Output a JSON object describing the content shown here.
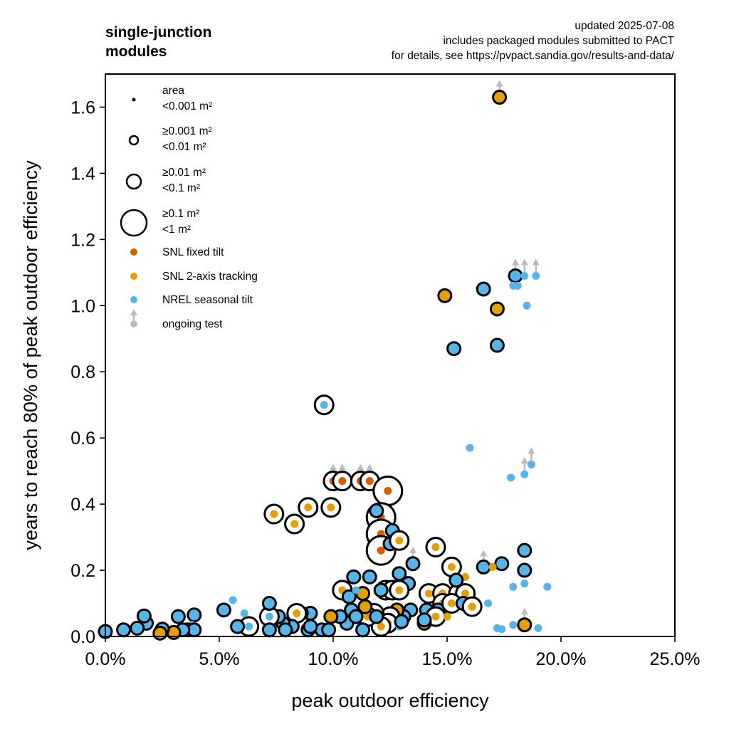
{
  "chart_data": {
    "type": "scatter",
    "title": "single-junction modules",
    "title_lines": [
      "single-junction",
      "modules"
    ],
    "notes": [
      "updated 2025-07-08",
      "includes packaged modules submitted to PACT",
      "for details, see https://pvpact.sandia.gov/results-and-data/"
    ],
    "xlabel": "peak outdoor efficiency",
    "ylabel": "years to reach 80% of peak outdoor efficiency",
    "xlim": [
      0,
      25
    ],
    "ylim": [
      0,
      1.7
    ],
    "x_ticks": [
      0,
      5,
      10,
      15,
      20,
      25
    ],
    "x_tick_labels": [
      "0.0%",
      "5.0%",
      "10.0%",
      "15.0%",
      "20.0%",
      "25.0%"
    ],
    "y_ticks": [
      0,
      0.2,
      0.4,
      0.6,
      0.8,
      1.0,
      1.2,
      1.4,
      1.6
    ],
    "y_tick_labels": [
      "0.0",
      "0.2",
      "0.4",
      "0.6",
      "0.8",
      "1.0",
      "1.2",
      "1.4",
      "1.6"
    ],
    "grid": false,
    "legend_position": "top-left",
    "legend": {
      "size_title": "area",
      "sizes": [
        {
          "size": 0,
          "lines": [
            "area",
            "<0.001 m²"
          ]
        },
        {
          "size": 1,
          "lines": [
            "≥0.001 m²",
            "<0.01 m²"
          ]
        },
        {
          "size": 2,
          "lines": [
            "≥0.01 m²",
            "<0.1 m²"
          ]
        },
        {
          "size": 3,
          "lines": [
            "≥0.1 m²",
            "<1 m²"
          ]
        }
      ],
      "series": [
        {
          "key": "fixed",
          "label": "SNL fixed tilt"
        },
        {
          "key": "tracking",
          "label": "SNL 2-axis tracking"
        },
        {
          "key": "nrel",
          "label": "NREL seasonal tilt"
        },
        {
          "key": "ongoing",
          "label": "ongoing test"
        }
      ]
    },
    "series_colors": {
      "fixed": "#d55e00",
      "tracking": "#e69f00",
      "nrel": "#56b4e9",
      "ongoing": "#bbbbbb"
    },
    "size_classes": [
      "<0.001 m²",
      "≥0.001 m² <0.01 m²",
      "≥0.01 m² <0.1 m²",
      "≥0.1 m² <1 m²"
    ],
    "points": [
      {
        "x": 17.3,
        "y": 1.63,
        "s": "tracking",
        "size": 1,
        "ongoing": true
      },
      {
        "x": 14.9,
        "y": 1.03,
        "s": "tracking",
        "size": 1
      },
      {
        "x": 17.2,
        "y": 0.99,
        "s": "tracking",
        "size": 1
      },
      {
        "x": 16.6,
        "y": 1.05,
        "s": "nrel",
        "size": 1
      },
      {
        "x": 15.3,
        "y": 0.87,
        "s": "nrel",
        "size": 1
      },
      {
        "x": 17.2,
        "y": 0.88,
        "s": "nrel",
        "size": 1
      },
      {
        "x": 18.0,
        "y": 1.09,
        "s": "nrel",
        "size": 1,
        "ongoing": true
      },
      {
        "x": 17.9,
        "y": 1.06,
        "s": "nrel",
        "size": 0,
        "ongoing": true
      },
      {
        "x": 18.1,
        "y": 1.06,
        "s": "nrel",
        "size": 0,
        "ongoing": true
      },
      {
        "x": 18.4,
        "y": 1.09,
        "s": "nrel",
        "size": 0,
        "ongoing": true
      },
      {
        "x": 18.9,
        "y": 1.09,
        "s": "nrel",
        "size": 0,
        "ongoing": true
      },
      {
        "x": 18.5,
        "y": 1.0,
        "s": "nrel",
        "size": 0
      },
      {
        "x": 9.6,
        "y": 0.7,
        "s": "nrel",
        "size": 2
      },
      {
        "x": 16.0,
        "y": 0.57,
        "s": "nrel",
        "size": 0
      },
      {
        "x": 17.8,
        "y": 0.48,
        "s": "nrel",
        "size": 0
      },
      {
        "x": 18.4,
        "y": 0.49,
        "s": "nrel",
        "size": 0,
        "ongoing": true
      },
      {
        "x": 18.7,
        "y": 0.52,
        "s": "nrel",
        "size": 0,
        "ongoing": true
      },
      {
        "x": 10.0,
        "y": 0.47,
        "s": "fixed",
        "size": 2,
        "ongoing": true
      },
      {
        "x": 10.4,
        "y": 0.47,
        "s": "fixed",
        "size": 2,
        "ongoing": true
      },
      {
        "x": 11.2,
        "y": 0.47,
        "s": "fixed",
        "size": 2,
        "ongoing": true
      },
      {
        "x": 11.6,
        "y": 0.47,
        "s": "fixed",
        "size": 2,
        "ongoing": true
      },
      {
        "x": 12.4,
        "y": 0.44,
        "s": "fixed",
        "size": 3
      },
      {
        "x": 12.1,
        "y": 0.36,
        "s": "fixed",
        "size": 3
      },
      {
        "x": 12.1,
        "y": 0.31,
        "s": "fixed",
        "size": 3
      },
      {
        "x": 12.1,
        "y": 0.26,
        "s": "fixed",
        "size": 3
      },
      {
        "x": 11.9,
        "y": 0.38,
        "s": "nrel",
        "size": 1
      },
      {
        "x": 12.6,
        "y": 0.32,
        "s": "nrel",
        "size": 1
      },
      {
        "x": 12.5,
        "y": 0.28,
        "s": "nrel",
        "size": 1
      },
      {
        "x": 12.9,
        "y": 0.29,
        "s": "tracking",
        "size": 2
      },
      {
        "x": 7.4,
        "y": 0.37,
        "s": "tracking",
        "size": 2
      },
      {
        "x": 8.3,
        "y": 0.34,
        "s": "tracking",
        "size": 2
      },
      {
        "x": 8.9,
        "y": 0.39,
        "s": "tracking",
        "size": 2
      },
      {
        "x": 9.9,
        "y": 0.39,
        "s": "tracking",
        "size": 2
      },
      {
        "x": 13.5,
        "y": 0.22,
        "s": "nrel",
        "size": 1,
        "ongoing": true
      },
      {
        "x": 14.5,
        "y": 0.27,
        "s": "tracking",
        "size": 2
      },
      {
        "x": 15.2,
        "y": 0.21,
        "s": "tracking",
        "size": 2
      },
      {
        "x": 16.6,
        "y": 0.21,
        "s": "nrel",
        "size": 1,
        "ongoing": true
      },
      {
        "x": 17.4,
        "y": 0.22,
        "s": "nrel",
        "size": 1
      },
      {
        "x": 18.4,
        "y": 0.26,
        "s": "nrel",
        "size": 1
      },
      {
        "x": 18.4,
        "y": 0.2,
        "s": "nrel",
        "size": 1
      },
      {
        "x": 17.0,
        "y": 0.21,
        "s": "tracking",
        "size": 0
      },
      {
        "x": 15.8,
        "y": 0.18,
        "s": "tracking",
        "size": 0
      },
      {
        "x": 17.9,
        "y": 0.15,
        "s": "nrel",
        "size": 0
      },
      {
        "x": 18.4,
        "y": 0.16,
        "s": "nrel",
        "size": 0
      },
      {
        "x": 19.4,
        "y": 0.15,
        "s": "nrel",
        "size": 0
      },
      {
        "x": 18.4,
        "y": 0.035,
        "s": "tracking",
        "size": 1,
        "ongoing": true
      },
      {
        "x": 17.2,
        "y": 0.025,
        "s": "nrel",
        "size": 0
      },
      {
        "x": 17.4,
        "y": 0.022,
        "s": "nrel",
        "size": 0
      },
      {
        "x": 17.9,
        "y": 0.035,
        "s": "nrel",
        "size": 0
      },
      {
        "x": 19.0,
        "y": 0.025,
        "s": "nrel",
        "size": 0
      },
      {
        "x": 12.9,
        "y": 0.19,
        "s": "nrel",
        "size": 1
      },
      {
        "x": 13.3,
        "y": 0.16,
        "s": "nrel",
        "size": 1
      },
      {
        "x": 12.7,
        "y": 0.14,
        "s": "nrel",
        "size": 1
      },
      {
        "x": 12.3,
        "y": 0.14,
        "s": "tracking",
        "size": 2
      },
      {
        "x": 12.6,
        "y": 0.14,
        "s": "tracking",
        "size": 2
      },
      {
        "x": 12.9,
        "y": 0.14,
        "s": "tracking",
        "size": 2
      },
      {
        "x": 12.1,
        "y": 0.14,
        "s": "nrel",
        "size": 1
      },
      {
        "x": 11.6,
        "y": 0.18,
        "s": "nrel",
        "size": 1
      },
      {
        "x": 10.9,
        "y": 0.18,
        "s": "nrel",
        "size": 1
      },
      {
        "x": 10.4,
        "y": 0.14,
        "s": "tracking",
        "size": 2
      },
      {
        "x": 10.7,
        "y": 0.12,
        "s": "nrel",
        "size": 1
      },
      {
        "x": 11.3,
        "y": 0.13,
        "s": "tracking",
        "size": 1
      },
      {
        "x": 11.0,
        "y": 0.14,
        "s": "nrel",
        "size": 0
      },
      {
        "x": 14.2,
        "y": 0.13,
        "s": "tracking",
        "size": 2
      },
      {
        "x": 14.8,
        "y": 0.13,
        "s": "tracking",
        "size": 2
      },
      {
        "x": 15.5,
        "y": 0.13,
        "s": "tracking",
        "size": 2
      },
      {
        "x": 15.8,
        "y": 0.13,
        "s": "tracking",
        "size": 2
      },
      {
        "x": 15.4,
        "y": 0.17,
        "s": "nrel",
        "size": 1
      },
      {
        "x": 14.8,
        "y": 0.1,
        "s": "tracking",
        "size": 2
      },
      {
        "x": 14.6,
        "y": 0.08,
        "s": "nrel",
        "size": 1
      },
      {
        "x": 15.2,
        "y": 0.1,
        "s": "tracking",
        "size": 2
      },
      {
        "x": 15.7,
        "y": 0.1,
        "s": "nrel",
        "size": 1
      },
      {
        "x": 16.1,
        "y": 0.09,
        "s": "tracking",
        "size": 2
      },
      {
        "x": 16.8,
        "y": 0.1,
        "s": "nrel",
        "size": 0
      },
      {
        "x": 14.1,
        "y": 0.08,
        "s": "nrel",
        "size": 1
      },
      {
        "x": 14.5,
        "y": 0.06,
        "s": "tracking",
        "size": 2
      },
      {
        "x": 14.0,
        "y": 0.04,
        "s": "tracking",
        "size": 1
      },
      {
        "x": 14.0,
        "y": 0.05,
        "s": "nrel",
        "size": 1
      },
      {
        "x": 15.0,
        "y": 0.06,
        "s": "tracking",
        "size": 0
      },
      {
        "x": 13.4,
        "y": 0.08,
        "s": "nrel",
        "size": 1
      },
      {
        "x": 13.1,
        "y": 0.06,
        "s": "nrel",
        "size": 1
      },
      {
        "x": 12.8,
        "y": 0.08,
        "s": "tracking",
        "size": 1
      },
      {
        "x": 12.5,
        "y": 0.06,
        "s": "tracking",
        "size": 2
      },
      {
        "x": 12.4,
        "y": 0.04,
        "s": "tracking",
        "size": 2
      },
      {
        "x": 12.1,
        "y": 0.03,
        "s": "tracking",
        "size": 2
      },
      {
        "x": 12.9,
        "y": 0.03,
        "s": "nrel",
        "size": 0
      },
      {
        "x": 13.0,
        "y": 0.045,
        "s": "nrel",
        "size": 1
      },
      {
        "x": 11.8,
        "y": 0.07,
        "s": "tracking",
        "size": 2
      },
      {
        "x": 11.5,
        "y": 0.06,
        "s": "tracking",
        "size": 2
      },
      {
        "x": 11.9,
        "y": 0.06,
        "s": "nrel",
        "size": 1
      },
      {
        "x": 11.4,
        "y": 0.09,
        "s": "tracking",
        "size": 1
      },
      {
        "x": 10.8,
        "y": 0.08,
        "s": "nrel",
        "size": 1
      },
      {
        "x": 10.6,
        "y": 0.04,
        "s": "nrel",
        "size": 1
      },
      {
        "x": 11.3,
        "y": 0.02,
        "s": "nrel",
        "size": 1
      },
      {
        "x": 11.0,
        "y": 0.06,
        "s": "nrel",
        "size": 1
      },
      {
        "x": 10.3,
        "y": 0.06,
        "s": "nrel",
        "size": 1
      },
      {
        "x": 9.9,
        "y": 0.06,
        "s": "tracking",
        "size": 1
      },
      {
        "x": 9.5,
        "y": 0.02,
        "s": "nrel",
        "size": 1
      },
      {
        "x": 9.8,
        "y": 0.02,
        "s": "nrel",
        "size": 1
      },
      {
        "x": 9.0,
        "y": 0.07,
        "s": "nrel",
        "size": 1
      },
      {
        "x": 8.6,
        "y": 0.07,
        "s": "nrel",
        "size": 1
      },
      {
        "x": 8.4,
        "y": 0.07,
        "s": "tracking",
        "size": 2
      },
      {
        "x": 8.9,
        "y": 0.02,
        "s": "nrel",
        "size": 1
      },
      {
        "x": 9.0,
        "y": 0.03,
        "s": "nrel",
        "size": 1
      },
      {
        "x": 8.2,
        "y": 0.03,
        "s": "nrel",
        "size": 1
      },
      {
        "x": 7.8,
        "y": 0.04,
        "s": "nrel",
        "size": 1
      },
      {
        "x": 7.6,
        "y": 0.06,
        "s": "nrel",
        "size": 1
      },
      {
        "x": 7.9,
        "y": 0.02,
        "s": "nrel",
        "size": 1
      },
      {
        "x": 7.2,
        "y": 0.06,
        "s": "nrel",
        "size": 2
      },
      {
        "x": 7.2,
        "y": 0.1,
        "s": "nrel",
        "size": 1
      },
      {
        "x": 7.2,
        "y": 0.02,
        "s": "nrel",
        "size": 1
      },
      {
        "x": 6.3,
        "y": 0.03,
        "s": "nrel",
        "size": 2
      },
      {
        "x": 5.8,
        "y": 0.03,
        "s": "nrel",
        "size": 1
      },
      {
        "x": 5.6,
        "y": 0.11,
        "s": "nrel",
        "size": 0
      },
      {
        "x": 6.1,
        "y": 0.07,
        "s": "nrel",
        "size": 0
      },
      {
        "x": 5.2,
        "y": 0.08,
        "s": "nrel",
        "size": 1
      },
      {
        "x": 3.9,
        "y": 0.065,
        "s": "nrel",
        "size": 1
      },
      {
        "x": 3.8,
        "y": 0.035,
        "s": "nrel",
        "size": 0
      },
      {
        "x": 3.6,
        "y": 0.02,
        "s": "nrel",
        "size": 1
      },
      {
        "x": 3.9,
        "y": 0.02,
        "s": "nrel",
        "size": 1
      },
      {
        "x": 3.4,
        "y": 0.02,
        "s": "nrel",
        "size": 1
      },
      {
        "x": 3.2,
        "y": 0.06,
        "s": "nrel",
        "size": 1
      },
      {
        "x": 3.0,
        "y": 0.012,
        "s": "tracking",
        "size": 1
      },
      {
        "x": 2.5,
        "y": 0.022,
        "s": "nrel",
        "size": 1
      },
      {
        "x": 2.4,
        "y": 0.01,
        "s": "tracking",
        "size": 1
      },
      {
        "x": 1.8,
        "y": 0.04,
        "s": "nrel",
        "size": 1
      },
      {
        "x": 1.7,
        "y": 0.062,
        "s": "nrel",
        "size": 1
      },
      {
        "x": 1.4,
        "y": 0.025,
        "s": "nrel",
        "size": 1
      },
      {
        "x": 0.8,
        "y": 0.02,
        "s": "nrel",
        "size": 1
      },
      {
        "x": 0.0,
        "y": 0.015,
        "s": "nrel",
        "size": 1
      }
    ]
  }
}
